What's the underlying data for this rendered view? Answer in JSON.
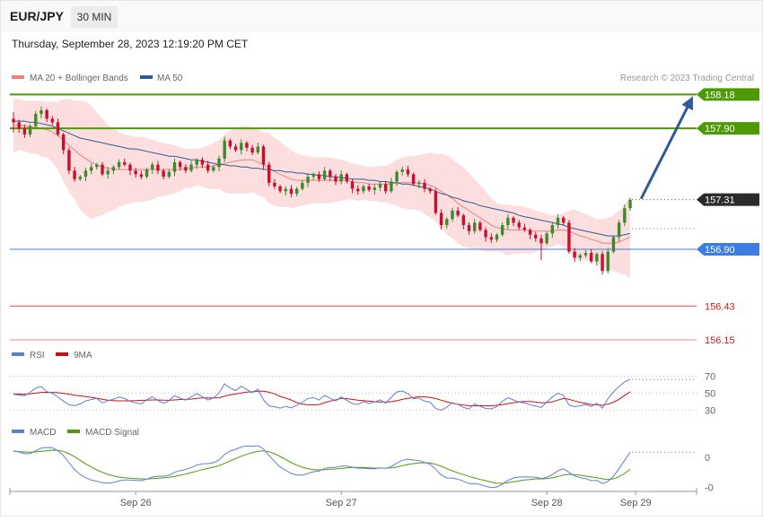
{
  "header": {
    "symbol": "EUR/JPY",
    "timeframe": "30 MIN",
    "datetime": "Thursday, September 28, 2023 12:19:20 PM CET"
  },
  "credit": "Research © 2023 Trading Central",
  "colors": {
    "resistance": "#4e9a06",
    "pivot": "#3b7de0",
    "support": "#e34b4b",
    "support_light": "#f08a8a",
    "up_candle": "#3c8a2a",
    "down_candle": "#c8102e",
    "ma20": "#f08080",
    "ma50": "#2e5b96",
    "bollinger_fill": "#fcdede",
    "arrow": "#2e5b96",
    "current": "#2b2b2b",
    "rsi": "#5b7fd6",
    "rsi_ma": "#d01010",
    "macd": "#5b7fd6",
    "macd_signal": "#4e9a06"
  },
  "chart_data": [
    {
      "type": "candlestick",
      "id": "price",
      "legend": [
        {
          "key": "ma20",
          "label": "MA 20 + Bollinger Bands",
          "color": "#f08080"
        },
        {
          "key": "ma50",
          "label": "MA 50",
          "color": "#2e5b96"
        }
      ],
      "ylim": [
        156.05,
        158.25
      ],
      "x_ticks": [
        {
          "label": "Sep 26",
          "index": 22
        },
        {
          "label": "Sep 27",
          "index": 59
        },
        {
          "label": "Sep 28",
          "index": 96
        },
        {
          "label": "Sep 29",
          "index": 112
        }
      ],
      "levels": [
        {
          "value": 158.18,
          "label": "158.18",
          "kind": "resistance"
        },
        {
          "value": 157.9,
          "label": "157.90",
          "kind": "resistance"
        },
        {
          "value": 157.31,
          "label": "157.31",
          "kind": "current"
        },
        {
          "value": 156.9,
          "label": "156.90",
          "kind": "pivot"
        },
        {
          "value": 156.43,
          "label": "156.43",
          "kind": "support"
        },
        {
          "value": 156.15,
          "label": "156.15",
          "kind": "support_light"
        }
      ],
      "close": [
        157.95,
        157.9,
        157.85,
        157.92,
        158.02,
        158.05,
        157.98,
        157.95,
        157.85,
        157.72,
        157.55,
        157.48,
        157.5,
        157.55,
        157.58,
        157.6,
        157.52,
        157.55,
        157.58,
        157.62,
        157.6,
        157.55,
        157.52,
        157.5,
        157.56,
        157.6,
        157.55,
        157.5,
        157.54,
        157.62,
        157.58,
        157.55,
        157.6,
        157.64,
        157.6,
        157.55,
        157.58,
        157.65,
        157.8,
        157.75,
        157.72,
        157.78,
        157.74,
        157.7,
        157.75,
        157.6,
        157.45,
        157.42,
        157.38,
        157.4,
        157.36,
        157.4,
        157.45,
        157.5,
        157.52,
        157.48,
        157.55,
        157.5,
        157.46,
        157.52,
        157.46,
        157.4,
        157.38,
        157.42,
        157.39,
        157.41,
        157.44,
        157.38,
        157.46,
        157.54,
        157.56,
        157.52,
        157.44,
        157.45,
        157.4,
        157.38,
        157.2,
        157.1,
        157.15,
        157.22,
        157.18,
        157.1,
        157.05,
        157.12,
        157.06,
        157.0,
        156.98,
        157.02,
        157.1,
        157.16,
        157.12,
        157.08,
        157.06,
        157.02,
        156.99,
        156.95,
        157.03,
        157.1,
        157.16,
        157.12,
        156.88,
        156.83,
        156.85,
        156.87,
        156.8,
        156.86,
        156.72,
        156.88,
        157.0,
        157.12,
        157.24,
        157.31
      ],
      "ma20": [
        157.92,
        157.93,
        157.92,
        157.91,
        157.91,
        157.9,
        157.89,
        157.87,
        157.84,
        157.8,
        157.76,
        157.72,
        157.68,
        157.65,
        157.62,
        157.6,
        157.58,
        157.57,
        157.56,
        157.56,
        157.56,
        157.56,
        157.56,
        157.56,
        157.56,
        157.56,
        157.56,
        157.56,
        157.56,
        157.56,
        157.56,
        157.57,
        157.57,
        157.58,
        157.58,
        157.58,
        157.59,
        157.6,
        157.61,
        157.62,
        157.63,
        157.64,
        157.64,
        157.64,
        157.62,
        157.6,
        157.57,
        157.54,
        157.52,
        157.5,
        157.48,
        157.47,
        157.47,
        157.47,
        157.47,
        157.47,
        157.47,
        157.47,
        157.47,
        157.47,
        157.47,
        157.46,
        157.45,
        157.45,
        157.44,
        157.44,
        157.44,
        157.44,
        157.44,
        157.45,
        157.45,
        157.45,
        157.45,
        157.45,
        157.44,
        157.43,
        157.41,
        157.38,
        157.35,
        157.32,
        157.28,
        157.25,
        157.22,
        157.19,
        157.16,
        157.13,
        157.1,
        157.08,
        157.07,
        157.06,
        157.06,
        157.06,
        157.06,
        157.05,
        157.05,
        157.05,
        157.05,
        157.05,
        157.06,
        157.06,
        157.05,
        157.03,
        157.01,
        157.0,
        156.98,
        156.97,
        156.95,
        156.95,
        156.95,
        156.96,
        156.98,
        157.0
      ],
      "bb_upper": [
        158.14,
        158.14,
        158.13,
        158.13,
        158.13,
        158.13,
        158.12,
        158.12,
        158.12,
        158.14,
        158.14,
        158.13,
        158.13,
        158.12,
        158.09,
        158.03,
        157.98,
        157.93,
        157.9,
        157.87,
        157.85,
        157.84,
        157.83,
        157.83,
        157.82,
        157.81,
        157.79,
        157.78,
        157.77,
        157.76,
        157.74,
        157.73,
        157.73,
        157.73,
        157.74,
        157.76,
        157.78,
        157.8,
        157.85,
        157.88,
        157.9,
        157.92,
        157.92,
        157.91,
        157.89,
        157.87,
        157.86,
        157.82,
        157.79,
        157.75,
        157.72,
        157.69,
        157.68,
        157.67,
        157.66,
        157.66,
        157.66,
        157.66,
        157.65,
        157.64,
        157.63,
        157.61,
        157.6,
        157.59,
        157.58,
        157.58,
        157.59,
        157.59,
        157.61,
        157.64,
        157.66,
        157.67,
        157.67,
        157.68,
        157.69,
        157.7,
        157.69,
        157.69,
        157.68,
        157.65,
        157.61,
        157.58,
        157.53,
        157.48,
        157.43,
        157.38,
        157.32,
        157.28,
        157.27,
        157.27,
        157.26,
        157.26,
        157.25,
        157.24,
        157.22,
        157.21,
        157.19,
        157.18,
        157.18,
        157.2,
        157.22,
        157.23,
        157.21,
        157.19,
        157.17,
        157.15,
        157.15,
        157.16,
        157.18,
        157.22,
        157.27,
        157.34
      ],
      "bb_lower": [
        157.7,
        157.72,
        157.71,
        157.69,
        157.69,
        157.67,
        157.66,
        157.62,
        157.56,
        157.46,
        157.38,
        157.31,
        157.23,
        157.18,
        157.15,
        157.17,
        157.18,
        157.21,
        157.22,
        157.25,
        157.27,
        157.28,
        157.29,
        157.29,
        157.3,
        157.31,
        157.33,
        157.34,
        157.35,
        157.36,
        157.38,
        157.41,
        157.41,
        157.43,
        157.42,
        157.4,
        157.4,
        157.4,
        157.37,
        157.36,
        157.36,
        157.36,
        157.36,
        157.37,
        157.35,
        157.33,
        157.28,
        157.26,
        157.25,
        157.25,
        157.24,
        157.25,
        157.26,
        157.27,
        157.28,
        157.28,
        157.28,
        157.28,
        157.29,
        157.3,
        157.31,
        157.31,
        157.3,
        157.31,
        157.3,
        157.3,
        157.29,
        157.29,
        157.27,
        157.26,
        157.24,
        157.23,
        157.23,
        157.22,
        157.19,
        157.16,
        157.13,
        157.07,
        157.02,
        156.99,
        156.95,
        156.92,
        156.91,
        156.9,
        156.89,
        156.88,
        156.88,
        156.88,
        156.87,
        156.85,
        156.86,
        156.86,
        156.87,
        156.86,
        156.88,
        156.89,
        156.91,
        156.92,
        156.94,
        156.92,
        156.88,
        156.83,
        156.81,
        156.81,
        156.79,
        156.79,
        156.75,
        156.74,
        156.72,
        156.7,
        156.69,
        156.66
      ],
      "ma50": [
        157.96,
        157.96,
        157.96,
        157.95,
        157.95,
        157.94,
        157.93,
        157.92,
        157.9,
        157.88,
        157.86,
        157.84,
        157.82,
        157.81,
        157.8,
        157.79,
        157.78,
        157.77,
        157.76,
        157.75,
        157.74,
        157.73,
        157.73,
        157.72,
        157.71,
        157.7,
        157.69,
        157.68,
        157.67,
        157.67,
        157.66,
        157.65,
        157.64,
        157.64,
        157.63,
        157.62,
        157.61,
        157.6,
        157.6,
        157.59,
        157.59,
        157.58,
        157.58,
        157.57,
        157.57,
        157.56,
        157.56,
        157.55,
        157.55,
        157.54,
        157.54,
        157.53,
        157.53,
        157.52,
        157.52,
        157.51,
        157.51,
        157.5,
        157.5,
        157.49,
        157.49,
        157.48,
        157.48,
        157.48,
        157.47,
        157.47,
        157.46,
        157.46,
        157.45,
        157.45,
        157.44,
        157.44,
        157.43,
        157.42,
        157.41,
        157.4,
        157.38,
        157.36,
        157.35,
        157.33,
        157.32,
        157.3,
        157.29,
        157.28,
        157.26,
        157.25,
        157.24,
        157.23,
        157.22,
        157.21,
        157.2,
        157.18,
        157.17,
        157.16,
        157.15,
        157.14,
        157.13,
        157.12,
        157.11,
        157.1,
        157.08,
        157.07,
        157.06,
        157.05,
        157.04,
        157.03,
        157.02,
        157.01,
        157.01,
        157.01,
        157.02,
        157.03
      ],
      "forecast": {
        "from_index": 112,
        "from_value": 157.31,
        "to_value": 158.18
      }
    },
    {
      "type": "line",
      "id": "rsi",
      "legend": [
        {
          "key": "rsi",
          "label": "RSI",
          "color": "#5b7fd6"
        },
        {
          "key": "rsi_ma",
          "label": "9MA",
          "color": "#d01010"
        }
      ],
      "ylim": [
        25,
        80
      ],
      "levels": [
        {
          "value": 70,
          "label": "70"
        },
        {
          "value": 50,
          "label": "50"
        },
        {
          "value": 30,
          "label": "30"
        }
      ],
      "rsi": [
        48.5,
        47.7,
        46.9,
        51.0,
        56.0,
        57.7,
        51.8,
        50.1,
        45.2,
        40.5,
        36.2,
        35.0,
        37.3,
        40.8,
        42.5,
        43.7,
        38.4,
        41.1,
        42.9,
        45.3,
        43.6,
        40.3,
        38.5,
        37.3,
        42.2,
        45.5,
        41.3,
        38.0,
        41.1,
        47.0,
        44.0,
        41.7,
        45.6,
        49.3,
        45.8,
        41.8,
        44.1,
        50.2,
        60.9,
        55.9,
        53.0,
        58.1,
        54.3,
        50.6,
        54.7,
        42.1,
        34.9,
        34.0,
        32.3,
        34.2,
        32.7,
        35.5,
        39.3,
        43.5,
        44.8,
        41.8,
        47.3,
        43.8,
        40.8,
        45.5,
        41.3,
        37.6,
        36.6,
        40.0,
        37.7,
        39.6,
        42.0,
        38.1,
        45.1,
        51.3,
        52.5,
        49.3,
        43.4,
        44.0,
        40.6,
        39.3,
        31.8,
        29.8,
        33.6,
        38.7,
        36.8,
        33.0,
        31.3,
        37.4,
        34.3,
        31.9,
        31.3,
        34.2,
        40.2,
        44.7,
        41.9,
        39.3,
        38.4,
        36.1,
        34.6,
        33.1,
        39.5,
        45.4,
        50.0,
        47.3,
        35.9,
        34.0,
        35.1,
        36.5,
        34.0,
        38.0,
        32.2,
        43.3,
        51.4,
        57.8,
        63.3,
        66.0
      ],
      "rsi_ma": [
        49.0,
        48.8,
        48.6,
        49.0,
        50.0,
        50.8,
        50.9,
        50.8,
        50.5,
        49.8,
        48.7,
        47.6,
        46.7,
        45.9,
        45.0,
        43.9,
        42.7,
        41.6,
        41.0,
        40.9,
        40.9,
        40.9,
        41.1,
        41.4,
        41.6,
        41.9,
        41.9,
        41.6,
        41.5,
        41.9,
        42.4,
        42.6,
        42.9,
        43.8,
        44.4,
        44.3,
        44.1,
        44.5,
        46.4,
        48.0,
        48.9,
        50.1,
        51.1,
        51.5,
        52.4,
        52.2,
        51.0,
        49.1,
        46.2,
        44.1,
        41.8,
        38.8,
        37.1,
        36.2,
        36.0,
        36.5,
        38.8,
        40.5,
        42.0,
        43.7,
        43.4,
        42.6,
        41.7,
        41.2,
        40.4,
        39.8,
        39.6,
        39.4,
        39.8,
        41.0,
        42.6,
        43.7,
        44.7,
        45.9,
        45.5,
        44.8,
        43.6,
        41.6,
        39.7,
        38.1,
        37.0,
        35.9,
        35.2,
        35.0,
        35.2,
        35.0,
        35.0,
        35.6,
        36.3,
        37.6,
        38.6,
        39.6,
        40.1,
        40.0,
        39.5,
        38.5,
        38.9,
        39.7,
        41.7,
        43.6,
        42.7,
        40.7,
        39.1,
        37.9,
        36.4,
        36.3,
        35.6,
        37.0,
        39.3,
        42.7,
        47.1,
        51.5
      ]
    },
    {
      "type": "line",
      "id": "macd",
      "legend": [
        {
          "key": "macd",
          "label": "MACD",
          "color": "#5b7fd6"
        },
        {
          "key": "macd_signal",
          "label": "MACD Signal",
          "color": "#4e9a06"
        }
      ],
      "ylim": [
        -0.12,
        0.06
      ],
      "levels": [
        {
          "value": 0,
          "label": "0"
        },
        {
          "value": -0.1,
          "label": "-0"
        }
      ],
      "macd": [
        0.022,
        0.018,
        0.012,
        0.013,
        0.022,
        0.031,
        0.033,
        0.032,
        0.022,
        0.006,
        -0.018,
        -0.041,
        -0.057,
        -0.068,
        -0.076,
        -0.08,
        -0.085,
        -0.086,
        -0.084,
        -0.079,
        -0.076,
        -0.076,
        -0.077,
        -0.078,
        -0.073,
        -0.066,
        -0.063,
        -0.063,
        -0.06,
        -0.05,
        -0.044,
        -0.041,
        -0.034,
        -0.026,
        -0.022,
        -0.021,
        -0.018,
        -0.009,
        0.01,
        0.021,
        0.027,
        0.035,
        0.038,
        0.037,
        0.039,
        0.028,
        0.006,
        -0.014,
        -0.032,
        -0.043,
        -0.054,
        -0.059,
        -0.059,
        -0.054,
        -0.048,
        -0.046,
        -0.037,
        -0.034,
        -0.034,
        -0.029,
        -0.029,
        -0.033,
        -0.037,
        -0.036,
        -0.038,
        -0.038,
        -0.035,
        -0.037,
        -0.031,
        -0.019,
        -0.01,
        -0.006,
        -0.009,
        -0.011,
        -0.017,
        -0.023,
        -0.04,
        -0.059,
        -0.069,
        -0.07,
        -0.073,
        -0.08,
        -0.088,
        -0.088,
        -0.091,
        -0.097,
        -0.101,
        -0.099,
        -0.09,
        -0.077,
        -0.069,
        -0.066,
        -0.065,
        -0.066,
        -0.067,
        -0.071,
        -0.067,
        -0.058,
        -0.045,
        -0.038,
        -0.05,
        -0.062,
        -0.068,
        -0.071,
        -0.078,
        -0.077,
        -0.088,
        -0.081,
        -0.063,
        -0.038,
        -0.01,
        0.017
      ],
      "macd_signal": [
        0.02,
        0.019,
        0.018,
        0.017,
        0.018,
        0.02,
        0.022,
        0.024,
        0.023,
        0.02,
        0.012,
        0.002,
        -0.01,
        -0.022,
        -0.032,
        -0.042,
        -0.05,
        -0.057,
        -0.062,
        -0.066,
        -0.068,
        -0.07,
        -0.071,
        -0.072,
        -0.073,
        -0.071,
        -0.07,
        -0.068,
        -0.067,
        -0.064,
        -0.06,
        -0.056,
        -0.051,
        -0.046,
        -0.041,
        -0.037,
        -0.033,
        -0.028,
        -0.02,
        -0.012,
        -0.004,
        0.004,
        0.01,
        0.016,
        0.02,
        0.022,
        0.019,
        0.012,
        0.003,
        -0.007,
        -0.018,
        -0.026,
        -0.033,
        -0.038,
        -0.041,
        -0.042,
        -0.041,
        -0.04,
        -0.039,
        -0.037,
        -0.035,
        -0.034,
        -0.034,
        -0.034,
        -0.035,
        -0.036,
        -0.036,
        -0.036,
        -0.035,
        -0.032,
        -0.028,
        -0.024,
        -0.021,
        -0.019,
        -0.018,
        -0.019,
        -0.023,
        -0.03,
        -0.038,
        -0.045,
        -0.052,
        -0.058,
        -0.064,
        -0.069,
        -0.074,
        -0.078,
        -0.083,
        -0.086,
        -0.087,
        -0.085,
        -0.082,
        -0.079,
        -0.076,
        -0.074,
        -0.072,
        -0.072,
        -0.071,
        -0.068,
        -0.064,
        -0.059,
        -0.057,
        -0.058,
        -0.06,
        -0.063,
        -0.066,
        -0.068,
        -0.072,
        -0.074,
        -0.072,
        -0.065,
        -0.054,
        -0.04
      ]
    }
  ]
}
